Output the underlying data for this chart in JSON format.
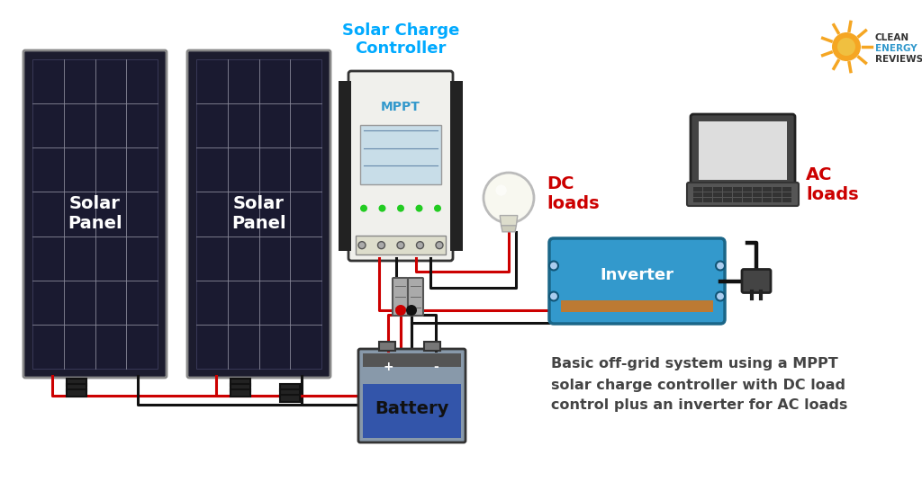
{
  "bg_color": "#ffffff",
  "panel_color_dark": "#1c1c2e",
  "panel_color_cell": "#181828",
  "panel_grid_color": "#2a2a4a",
  "panel_text": "Solar\nPanel",
  "panel_text_color": "#ffffff",
  "controller_label": "Solar Charge\nController",
  "controller_label_color": "#00aaff",
  "mppt_text": "MPPT",
  "battery_label": "Battery",
  "inverter_label": "Inverter",
  "inverter_color": "#3399cc",
  "inverter_edge": "#1a6688",
  "dc_loads_label": "DC\nloads",
  "dc_loads_color": "#cc0000",
  "ac_loads_label": "AC\nloads",
  "ac_loads_color": "#cc0000",
  "caption_line1": "Basic off-grid system using a MPPT",
  "caption_line2": "solar charge controller with DC load",
  "caption_line3": "control plus an inverter for AC loads",
  "caption_color": "#444444",
  "wire_red": "#cc0000",
  "wire_black": "#111111",
  "logo_sun_color": "#f5a623",
  "logo_text_color": "#333333"
}
